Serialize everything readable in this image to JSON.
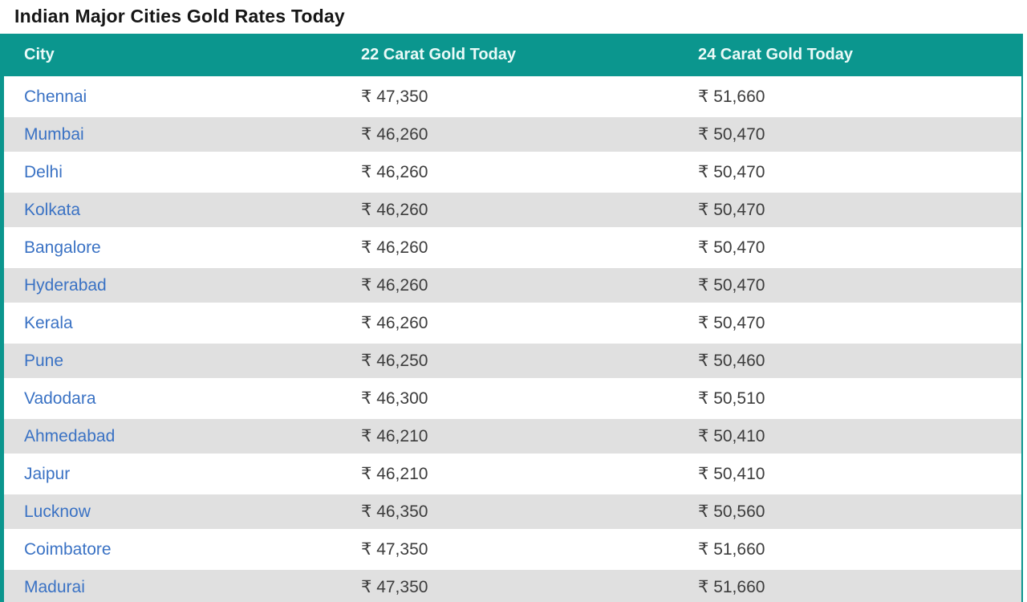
{
  "page": {
    "title": "Indian Major Cities Gold Rates Today"
  },
  "table": {
    "columns": [
      {
        "id": "city",
        "label": "City"
      },
      {
        "id": "carat22",
        "label": "22 Carat Gold Today"
      },
      {
        "id": "carat24",
        "label": "24 Carat Gold Today"
      }
    ],
    "rows": [
      {
        "city": "Chennai",
        "carat22": "₹ 47,350",
        "carat24": "₹ 51,660"
      },
      {
        "city": "Mumbai",
        "carat22": "₹ 46,260",
        "carat24": "₹ 50,470"
      },
      {
        "city": "Delhi",
        "carat22": "₹ 46,260",
        "carat24": "₹ 50,470"
      },
      {
        "city": "Kolkata",
        "carat22": "₹ 46,260",
        "carat24": "₹ 50,470"
      },
      {
        "city": "Bangalore",
        "carat22": "₹ 46,260",
        "carat24": "₹ 50,470"
      },
      {
        "city": "Hyderabad",
        "carat22": "₹ 46,260",
        "carat24": "₹ 50,470"
      },
      {
        "city": "Kerala",
        "carat22": "₹ 46,260",
        "carat24": "₹ 50,470"
      },
      {
        "city": "Pune",
        "carat22": "₹ 46,250",
        "carat24": "₹ 50,460"
      },
      {
        "city": "Vadodara",
        "carat22": "₹ 46,300",
        "carat24": "₹ 50,510"
      },
      {
        "city": "Ahmedabad",
        "carat22": "₹ 46,210",
        "carat24": "₹ 50,410"
      },
      {
        "city": "Jaipur",
        "carat22": "₹ 46,210",
        "carat24": "₹ 50,410"
      },
      {
        "city": "Lucknow",
        "carat22": "₹ 46,350",
        "carat24": "₹ 50,560"
      },
      {
        "city": "Coimbatore",
        "carat22": "₹ 47,350",
        "carat24": "₹ 51,660"
      },
      {
        "city": "Madurai",
        "carat22": "₹ 47,350",
        "carat24": "₹ 51,660"
      }
    ]
  },
  "colors": {
    "header_bg": "#0b968e",
    "header_text": "#eafaf8",
    "city_link": "#3a72c4",
    "value_text": "#3c3c3c",
    "row_alt_bg": "#e0e0e0",
    "title_text": "#161616"
  }
}
